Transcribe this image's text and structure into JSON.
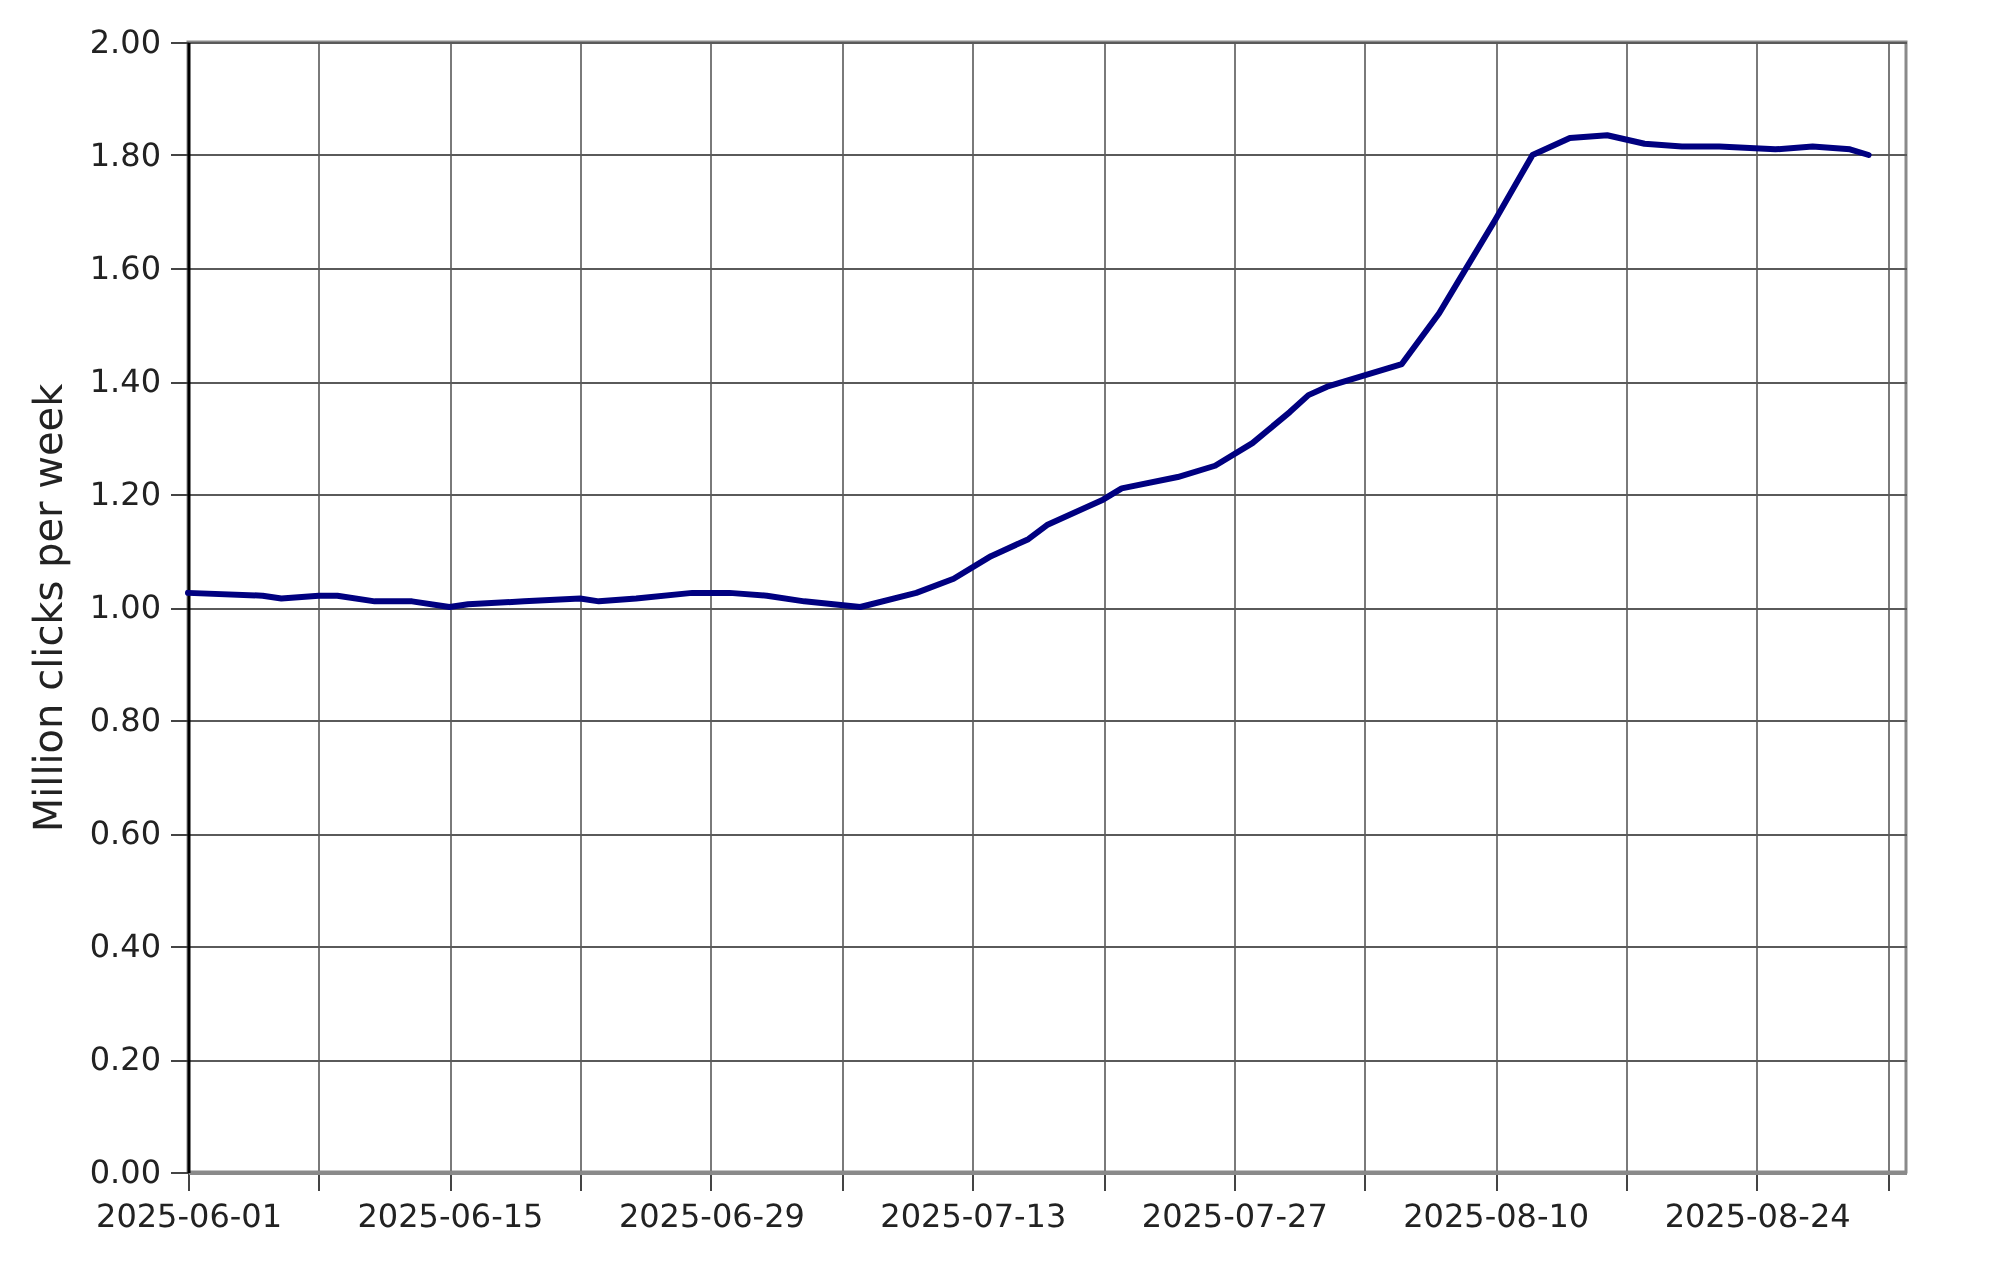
{
  "chart_data": {
    "type": "line",
    "ylabel": "Million clicks per week",
    "x": [
      "2025-06-01",
      "2025-06-05",
      "2025-06-06",
      "2025-06-08",
      "2025-06-09",
      "2025-06-11",
      "2025-06-13",
      "2025-06-15",
      "2025-06-16",
      "2025-06-19",
      "2025-06-22",
      "2025-06-23",
      "2025-06-25",
      "2025-06-28",
      "2025-06-30",
      "2025-07-02",
      "2025-07-04",
      "2025-07-07",
      "2025-07-10",
      "2025-07-12",
      "2025-07-14",
      "2025-07-16",
      "2025-07-17",
      "2025-07-20",
      "2025-07-21",
      "2025-07-24",
      "2025-07-26",
      "2025-07-28",
      "2025-07-30",
      "2025-07-31",
      "2025-08-01",
      "2025-08-03",
      "2025-08-05",
      "2025-08-07",
      "2025-08-08",
      "2025-08-10",
      "2025-08-12",
      "2025-08-14",
      "2025-08-16",
      "2025-08-18",
      "2025-08-20",
      "2025-08-22",
      "2025-08-25",
      "2025-08-27",
      "2025-08-29",
      "2025-08-30"
    ],
    "series": [
      {
        "color": "#000080",
        "values": [
          1.025,
          1.02,
          1.015,
          1.02,
          1.02,
          1.01,
          1.01,
          1.0,
          1.005,
          1.01,
          1.015,
          1.01,
          1.015,
          1.025,
          1.025,
          1.02,
          1.01,
          1.0,
          1.025,
          1.05,
          1.09,
          1.12,
          1.145,
          1.19,
          1.21,
          1.23,
          1.25,
          1.29,
          1.345,
          1.375,
          1.39,
          1.41,
          1.43,
          1.52,
          1.575,
          1.685,
          1.8,
          1.83,
          1.835,
          1.82,
          1.815,
          1.815,
          1.81,
          1.815,
          1.81,
          1.8
        ]
      }
    ],
    "xlim": [
      "2025-06-01",
      "2025-09-01"
    ],
    "ylim": [
      0,
      2
    ],
    "xticks": [
      "2025-06-01",
      {
        "value": "2025-06-08",
        "label": null
      },
      "2025-06-15",
      {
        "value": "2025-06-22",
        "label": null
      },
      "2025-06-29",
      {
        "value": "2025-07-06",
        "label": null
      },
      "2025-07-13",
      {
        "value": "2025-07-20",
        "label": null
      },
      "2025-07-27",
      {
        "value": "2025-08-03",
        "label": null
      },
      "2025-08-10",
      {
        "value": "2025-08-17",
        "label": null
      },
      "2025-08-24",
      {
        "value": "2025-08-31",
        "label": null
      }
    ],
    "yticks": [
      {
        "value": 0,
        "label": "0.00"
      },
      {
        "value": 0.2,
        "label": "0.20"
      },
      {
        "value": 0.4,
        "label": "0.40"
      },
      {
        "value": 0.6,
        "label": "0.60"
      },
      {
        "value": 0.8,
        "label": "0.80"
      },
      {
        "value": 1.0,
        "label": "1.00"
      },
      {
        "value": 1.2,
        "label": "1.20"
      },
      {
        "value": 1.4,
        "label": "1.40"
      },
      {
        "value": 1.6,
        "label": "1.60"
      },
      {
        "value": 1.8,
        "label": "1.80"
      },
      {
        "value": 2.0,
        "label": "2.00"
      }
    ],
    "grid": true
  }
}
